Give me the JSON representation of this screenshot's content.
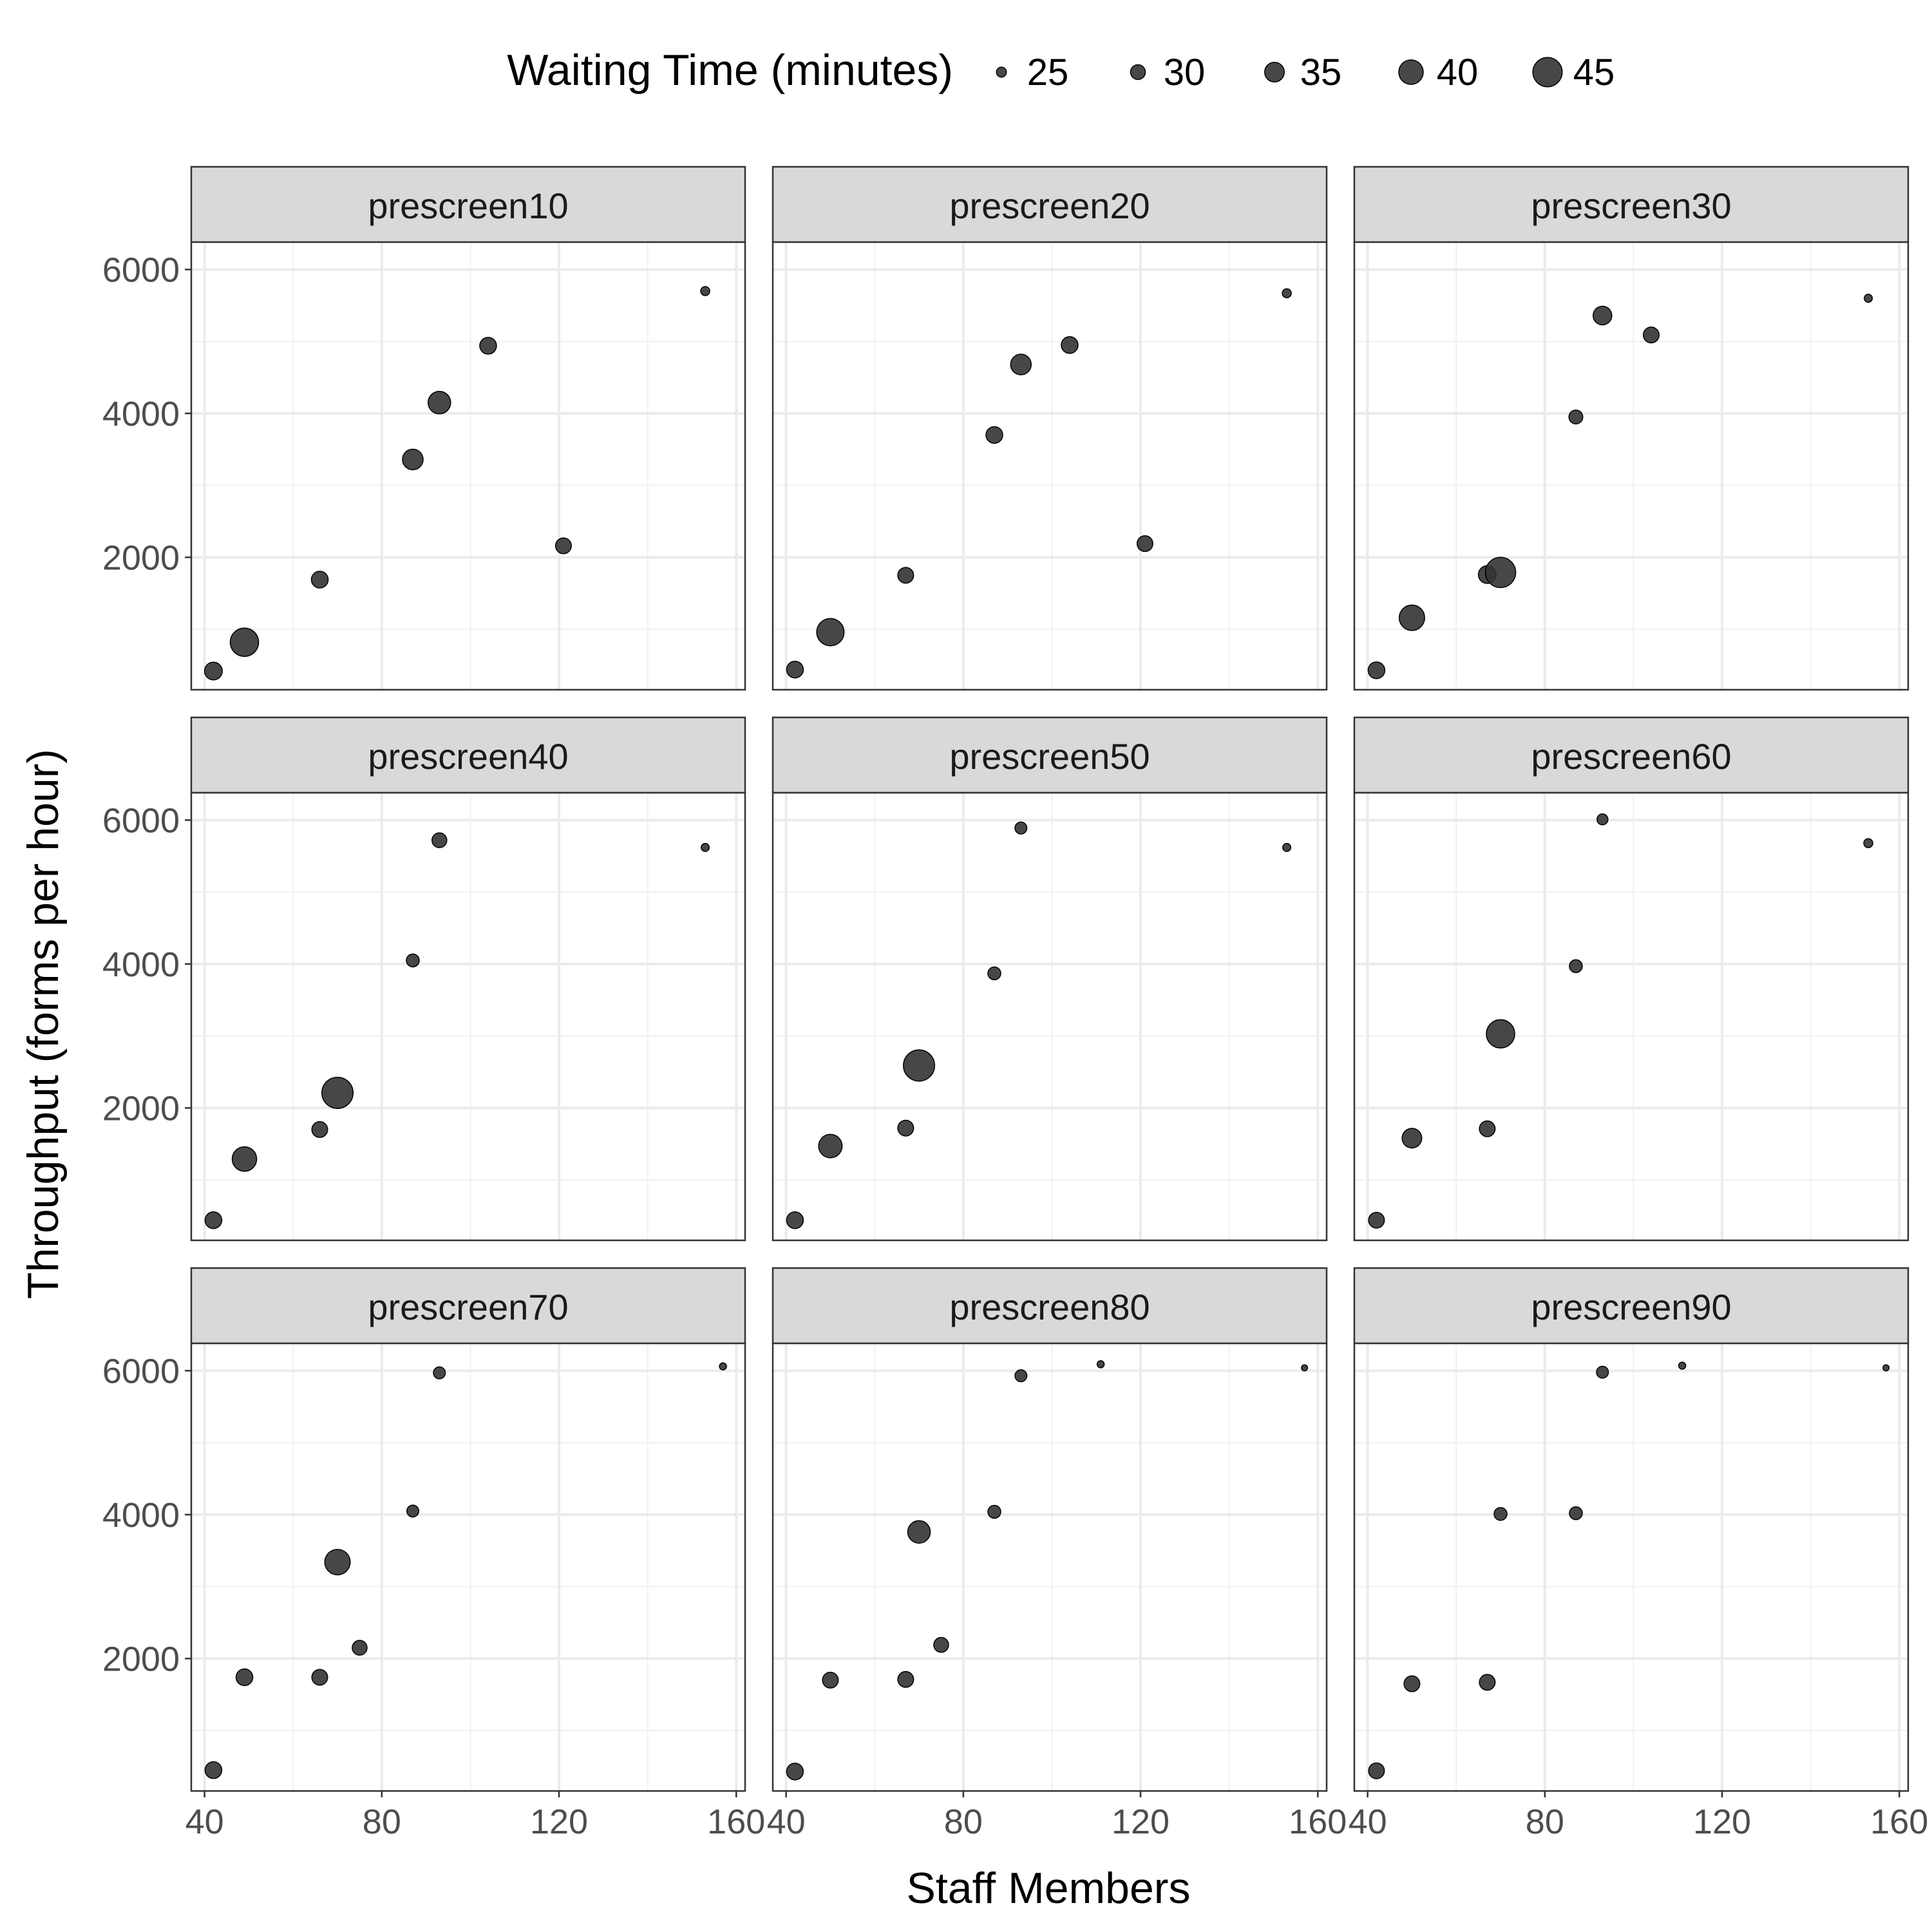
{
  "chart_data": {
    "type": "scatter",
    "xlabel": "Staff Members",
    "ylabel": "Throughput (forms per hour)",
    "xlim": [
      37,
      162
    ],
    "ylim": [
      160,
      6380
    ],
    "x_ticks": [
      40,
      80,
      120,
      160
    ],
    "y_ticks": [
      2000,
      4000,
      6000
    ],
    "grid": true,
    "point_color": "#333333",
    "legend": {
      "title": "Waiting Time (minutes)",
      "position": "top",
      "entries": [
        {
          "label": "25",
          "size": 25
        },
        {
          "label": "30",
          "size": 30
        },
        {
          "label": "35",
          "size": 35
        },
        {
          "label": "40",
          "size": 40
        },
        {
          "label": "45",
          "size": 45
        }
      ]
    },
    "panels": [
      {
        "name": "prescreen10",
        "points": [
          {
            "x": 42,
            "y": 420,
            "size": 33
          },
          {
            "x": 49,
            "y": 820,
            "size": 44
          },
          {
            "x": 66,
            "y": 1690,
            "size": 32
          },
          {
            "x": 87,
            "y": 3360,
            "size": 36
          },
          {
            "x": 93,
            "y": 4150,
            "size": 38
          },
          {
            "x": 104,
            "y": 4940,
            "size": 32
          },
          {
            "x": 121,
            "y": 2160,
            "size": 31
          },
          {
            "x": 153,
            "y": 5700,
            "size": 24
          }
        ]
      },
      {
        "name": "prescreen20",
        "points": [
          {
            "x": 42,
            "y": 440,
            "size": 32
          },
          {
            "x": 50,
            "y": 960,
            "size": 43
          },
          {
            "x": 67,
            "y": 1750,
            "size": 31
          },
          {
            "x": 87,
            "y": 3700,
            "size": 32
          },
          {
            "x": 93,
            "y": 4680,
            "size": 36
          },
          {
            "x": 104,
            "y": 4950,
            "size": 32
          },
          {
            "x": 121,
            "y": 2190,
            "size": 31
          },
          {
            "x": 153,
            "y": 5670,
            "size": 24
          }
        ]
      },
      {
        "name": "prescreen30",
        "points": [
          {
            "x": 42,
            "y": 430,
            "size": 32
          },
          {
            "x": 50,
            "y": 1160,
            "size": 41
          },
          {
            "x": 67,
            "y": 1760,
            "size": 33
          },
          {
            "x": 70,
            "y": 1790,
            "size": 46
          },
          {
            "x": 87,
            "y": 3950,
            "size": 29
          },
          {
            "x": 93,
            "y": 5360,
            "size": 34
          },
          {
            "x": 104,
            "y": 5090,
            "size": 31
          },
          {
            "x": 153,
            "y": 5600,
            "size": 23
          }
        ]
      },
      {
        "name": "prescreen40",
        "points": [
          {
            "x": 42,
            "y": 440,
            "size": 32
          },
          {
            "x": 49,
            "y": 1290,
            "size": 40
          },
          {
            "x": 66,
            "y": 1700,
            "size": 31
          },
          {
            "x": 70,
            "y": 2210,
            "size": 47
          },
          {
            "x": 87,
            "y": 4050,
            "size": 28
          },
          {
            "x": 93,
            "y": 5720,
            "size": 30
          },
          {
            "x": 153,
            "y": 5620,
            "size": 23
          }
        ]
      },
      {
        "name": "prescreen50",
        "points": [
          {
            "x": 42,
            "y": 440,
            "size": 32
          },
          {
            "x": 50,
            "y": 1470,
            "size": 39
          },
          {
            "x": 67,
            "y": 1720,
            "size": 31
          },
          {
            "x": 70,
            "y": 2590,
            "size": 47
          },
          {
            "x": 87,
            "y": 3870,
            "size": 28
          },
          {
            "x": 93,
            "y": 5890,
            "size": 27
          },
          {
            "x": 153,
            "y": 5620,
            "size": 23
          }
        ]
      },
      {
        "name": "prescreen60",
        "points": [
          {
            "x": 42,
            "y": 440,
            "size": 31
          },
          {
            "x": 50,
            "y": 1580,
            "size": 35
          },
          {
            "x": 67,
            "y": 1710,
            "size": 31
          },
          {
            "x": 70,
            "y": 3030,
            "size": 44
          },
          {
            "x": 87,
            "y": 3970,
            "size": 28
          },
          {
            "x": 93,
            "y": 6010,
            "size": 26
          },
          {
            "x": 153,
            "y": 5680,
            "size": 24
          }
        ]
      },
      {
        "name": "prescreen70",
        "points": [
          {
            "x": 42,
            "y": 450,
            "size": 32
          },
          {
            "x": 49,
            "y": 1740,
            "size": 32
          },
          {
            "x": 66,
            "y": 1740,
            "size": 31
          },
          {
            "x": 70,
            "y": 3340,
            "size": 41
          },
          {
            "x": 75,
            "y": 2150,
            "size": 30
          },
          {
            "x": 87,
            "y": 4050,
            "size": 27
          },
          {
            "x": 93,
            "y": 5970,
            "size": 27
          },
          {
            "x": 157,
            "y": 6060,
            "size": 22
          }
        ]
      },
      {
        "name": "prescreen80",
        "points": [
          {
            "x": 42,
            "y": 430,
            "size": 32
          },
          {
            "x": 50,
            "y": 1700,
            "size": 31
          },
          {
            "x": 67,
            "y": 1710,
            "size": 31
          },
          {
            "x": 70,
            "y": 3760,
            "size": 38
          },
          {
            "x": 75,
            "y": 2190,
            "size": 30
          },
          {
            "x": 87,
            "y": 4040,
            "size": 28
          },
          {
            "x": 93,
            "y": 5930,
            "size": 27
          },
          {
            "x": 111,
            "y": 6090,
            "size": 22
          },
          {
            "x": 157,
            "y": 6040,
            "size": 21
          }
        ]
      },
      {
        "name": "prescreen90",
        "points": [
          {
            "x": 42,
            "y": 440,
            "size": 31
          },
          {
            "x": 50,
            "y": 1650,
            "size": 31
          },
          {
            "x": 67,
            "y": 1670,
            "size": 31
          },
          {
            "x": 70,
            "y": 4010,
            "size": 28
          },
          {
            "x": 87,
            "y": 4020,
            "size": 28
          },
          {
            "x": 93,
            "y": 5980,
            "size": 27
          },
          {
            "x": 111,
            "y": 6070,
            "size": 22
          },
          {
            "x": 157,
            "y": 6040,
            "size": 21
          }
        ]
      }
    ]
  }
}
